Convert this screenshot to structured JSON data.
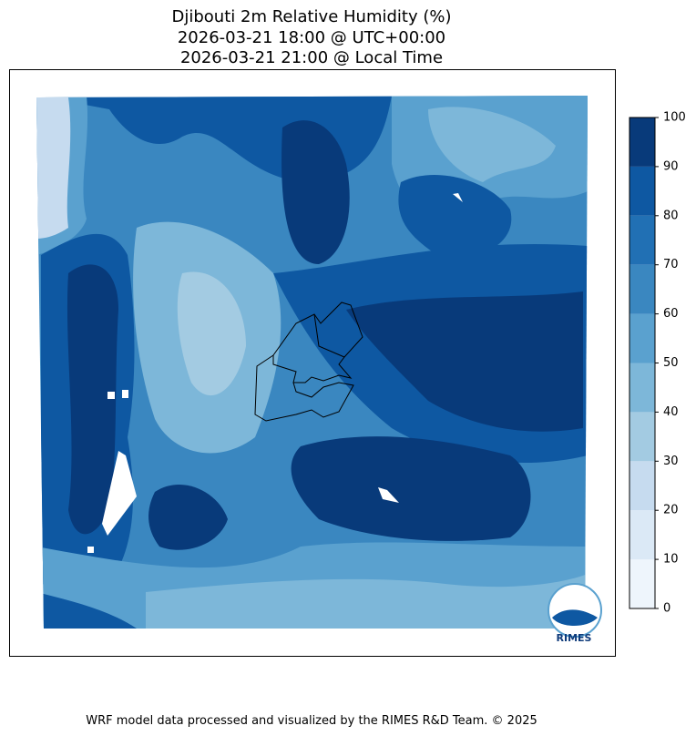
{
  "title": [
    "Djibouti 2m Relative Humidity (%)",
    "2026-03-21 18:00 @ UTC+00:00",
    "2026-03-21 21:00 @ Local Time"
  ],
  "colorbar": {
    "lim": [
      0,
      100
    ],
    "ticks": [
      0,
      10,
      20,
      30,
      40,
      50,
      60,
      70,
      80,
      90,
      100
    ],
    "colors": [
      "#eef5fc",
      "#dbe9f6",
      "#c6dbef",
      "#a3cbe2",
      "#7db7d9",
      "#5aa1cf",
      "#3a87c0",
      "#2170b4",
      "#0e58a2",
      "#083a7a"
    ]
  },
  "logo": "RIMES",
  "footer": "WRF model data processed and visualized by the RIMES R&D Team. © 2025"
}
